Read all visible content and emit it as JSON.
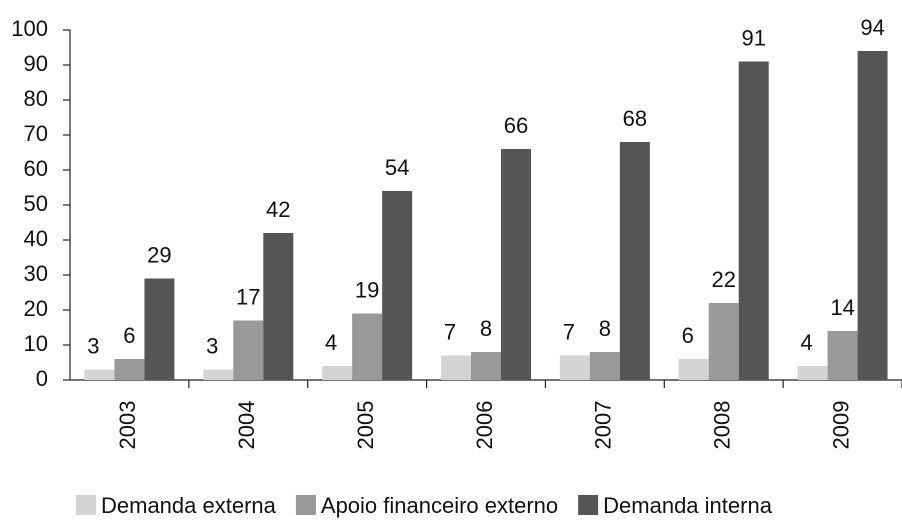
{
  "chart_data": {
    "type": "bar",
    "categories": [
      "2003",
      "2004",
      "2005",
      "2006",
      "2007",
      "2008",
      "2009"
    ],
    "series": [
      {
        "name": "Demanda externa",
        "color": "#d4d4d4",
        "values": [
          3,
          3,
          4,
          7,
          7,
          6,
          4
        ]
      },
      {
        "name": "Apoio financeiro externo",
        "color": "#999999",
        "values": [
          6,
          17,
          19,
          8,
          8,
          22,
          14
        ]
      },
      {
        "name": "Demanda interna",
        "color": "#555555",
        "values": [
          29,
          42,
          54,
          66,
          68,
          91,
          94
        ]
      }
    ],
    "ylim": [
      0,
      100
    ],
    "yticks": [
      0,
      10,
      20,
      30,
      40,
      50,
      60,
      70,
      80,
      90,
      100
    ],
    "grid": false,
    "legend": "bottom",
    "data_labels": true
  }
}
